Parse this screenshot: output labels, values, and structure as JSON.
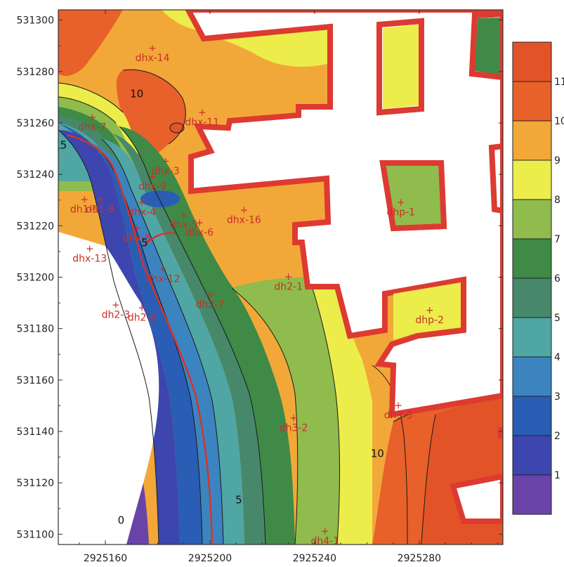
{
  "chart_data": {
    "type": "contour",
    "title": "",
    "xlabel": "",
    "ylabel": "",
    "x_ticks": [
      2925160,
      2925200,
      2925240,
      2925280
    ],
    "y_ticks": [
      531100,
      531120,
      531140,
      531160,
      531180,
      531200,
      531220,
      531240,
      531260,
      531280,
      531300
    ],
    "xlim": [
      2925142,
      2925312
    ],
    "ylim": [
      531096,
      531304
    ],
    "colorbar": {
      "levels": [
        0,
        1,
        2,
        3,
        4,
        5,
        6,
        7,
        8,
        9,
        10,
        11,
        12
      ],
      "tick_labels": [
        "1",
        "2",
        "3",
        "4",
        "5",
        "6",
        "7",
        "8",
        "9",
        "10",
        "11"
      ],
      "colors": [
        "#6a43a8",
        "#3c46ae",
        "#2a5db4",
        "#3c84c0",
        "#4fa6a4",
        "#47886a",
        "#3f8a46",
        "#8fbc4c",
        "#eced4a",
        "#f2a838",
        "#e8602a",
        "#e25428"
      ]
    },
    "contour_labels": [
      {
        "text": "10",
        "x": 2925172,
        "y": 531270
      },
      {
        "text": "5",
        "x": 2925144,
        "y": 531250
      },
      {
        "text": "0",
        "x": 2925139,
        "y": 531216
      },
      {
        "text": "5",
        "x": 2925175,
        "y": 531212
      },
      {
        "text": "5",
        "x": 2925211,
        "y": 531112
      },
      {
        "text": "10",
        "x": 2925264,
        "y": 531130
      },
      {
        "text": "0",
        "x": 2925166,
        "y": 531104
      }
    ],
    "wells": [
      {
        "name": "dhx-14",
        "x": 2925178,
        "y": 531289
      },
      {
        "name": "dhx-7",
        "x": 2925155,
        "y": 531262
      },
      {
        "name": "dhx-11",
        "x": 2925197,
        "y": 531264
      },
      {
        "name": "dhx-3",
        "x": 2925183,
        "y": 531245
      },
      {
        "name": "dhx-9",
        "x": 2925178,
        "y": 531239
      },
      {
        "name": "dh1-9",
        "x": 2925152,
        "y": 531230
      },
      {
        "name": "dh1-8",
        "x": 2925158,
        "y": 531230
      },
      {
        "name": "dhx-4",
        "x": 2925174,
        "y": 531229
      },
      {
        "name": "dhx-16",
        "x": 2925213,
        "y": 531226
      },
      {
        "name": "dhx-5",
        "x": 2925190,
        "y": 531224
      },
      {
        "name": "dhx-6",
        "x": 2925196,
        "y": 531221
      },
      {
        "name": "dhx-8",
        "x": 2925172,
        "y": 531219
      },
      {
        "name": "dhx-13",
        "x": 2925154,
        "y": 531211
      },
      {
        "name": "dhx-12",
        "x": 2925182,
        "y": 531203
      },
      {
        "name": "dh2-1",
        "x": 2925230,
        "y": 531200
      },
      {
        "name": "dh2-7",
        "x": 2925200,
        "y": 531193
      },
      {
        "name": "dh2-3",
        "x": 2925164,
        "y": 531189
      },
      {
        "name": "dh2-6",
        "x": 2925174,
        "y": 531188
      },
      {
        "name": "dhp-1",
        "x": 2925273,
        "y": 531229
      },
      {
        "name": "dhp-2",
        "x": 2925284,
        "y": 531187
      },
      {
        "name": "dh3-2",
        "x": 2925232,
        "y": 531145
      },
      {
        "name": "dh3-3",
        "x": 2925272,
        "y": 531150
      },
      {
        "name": "dh4-1",
        "x": 2925244,
        "y": 531101
      }
    ]
  }
}
